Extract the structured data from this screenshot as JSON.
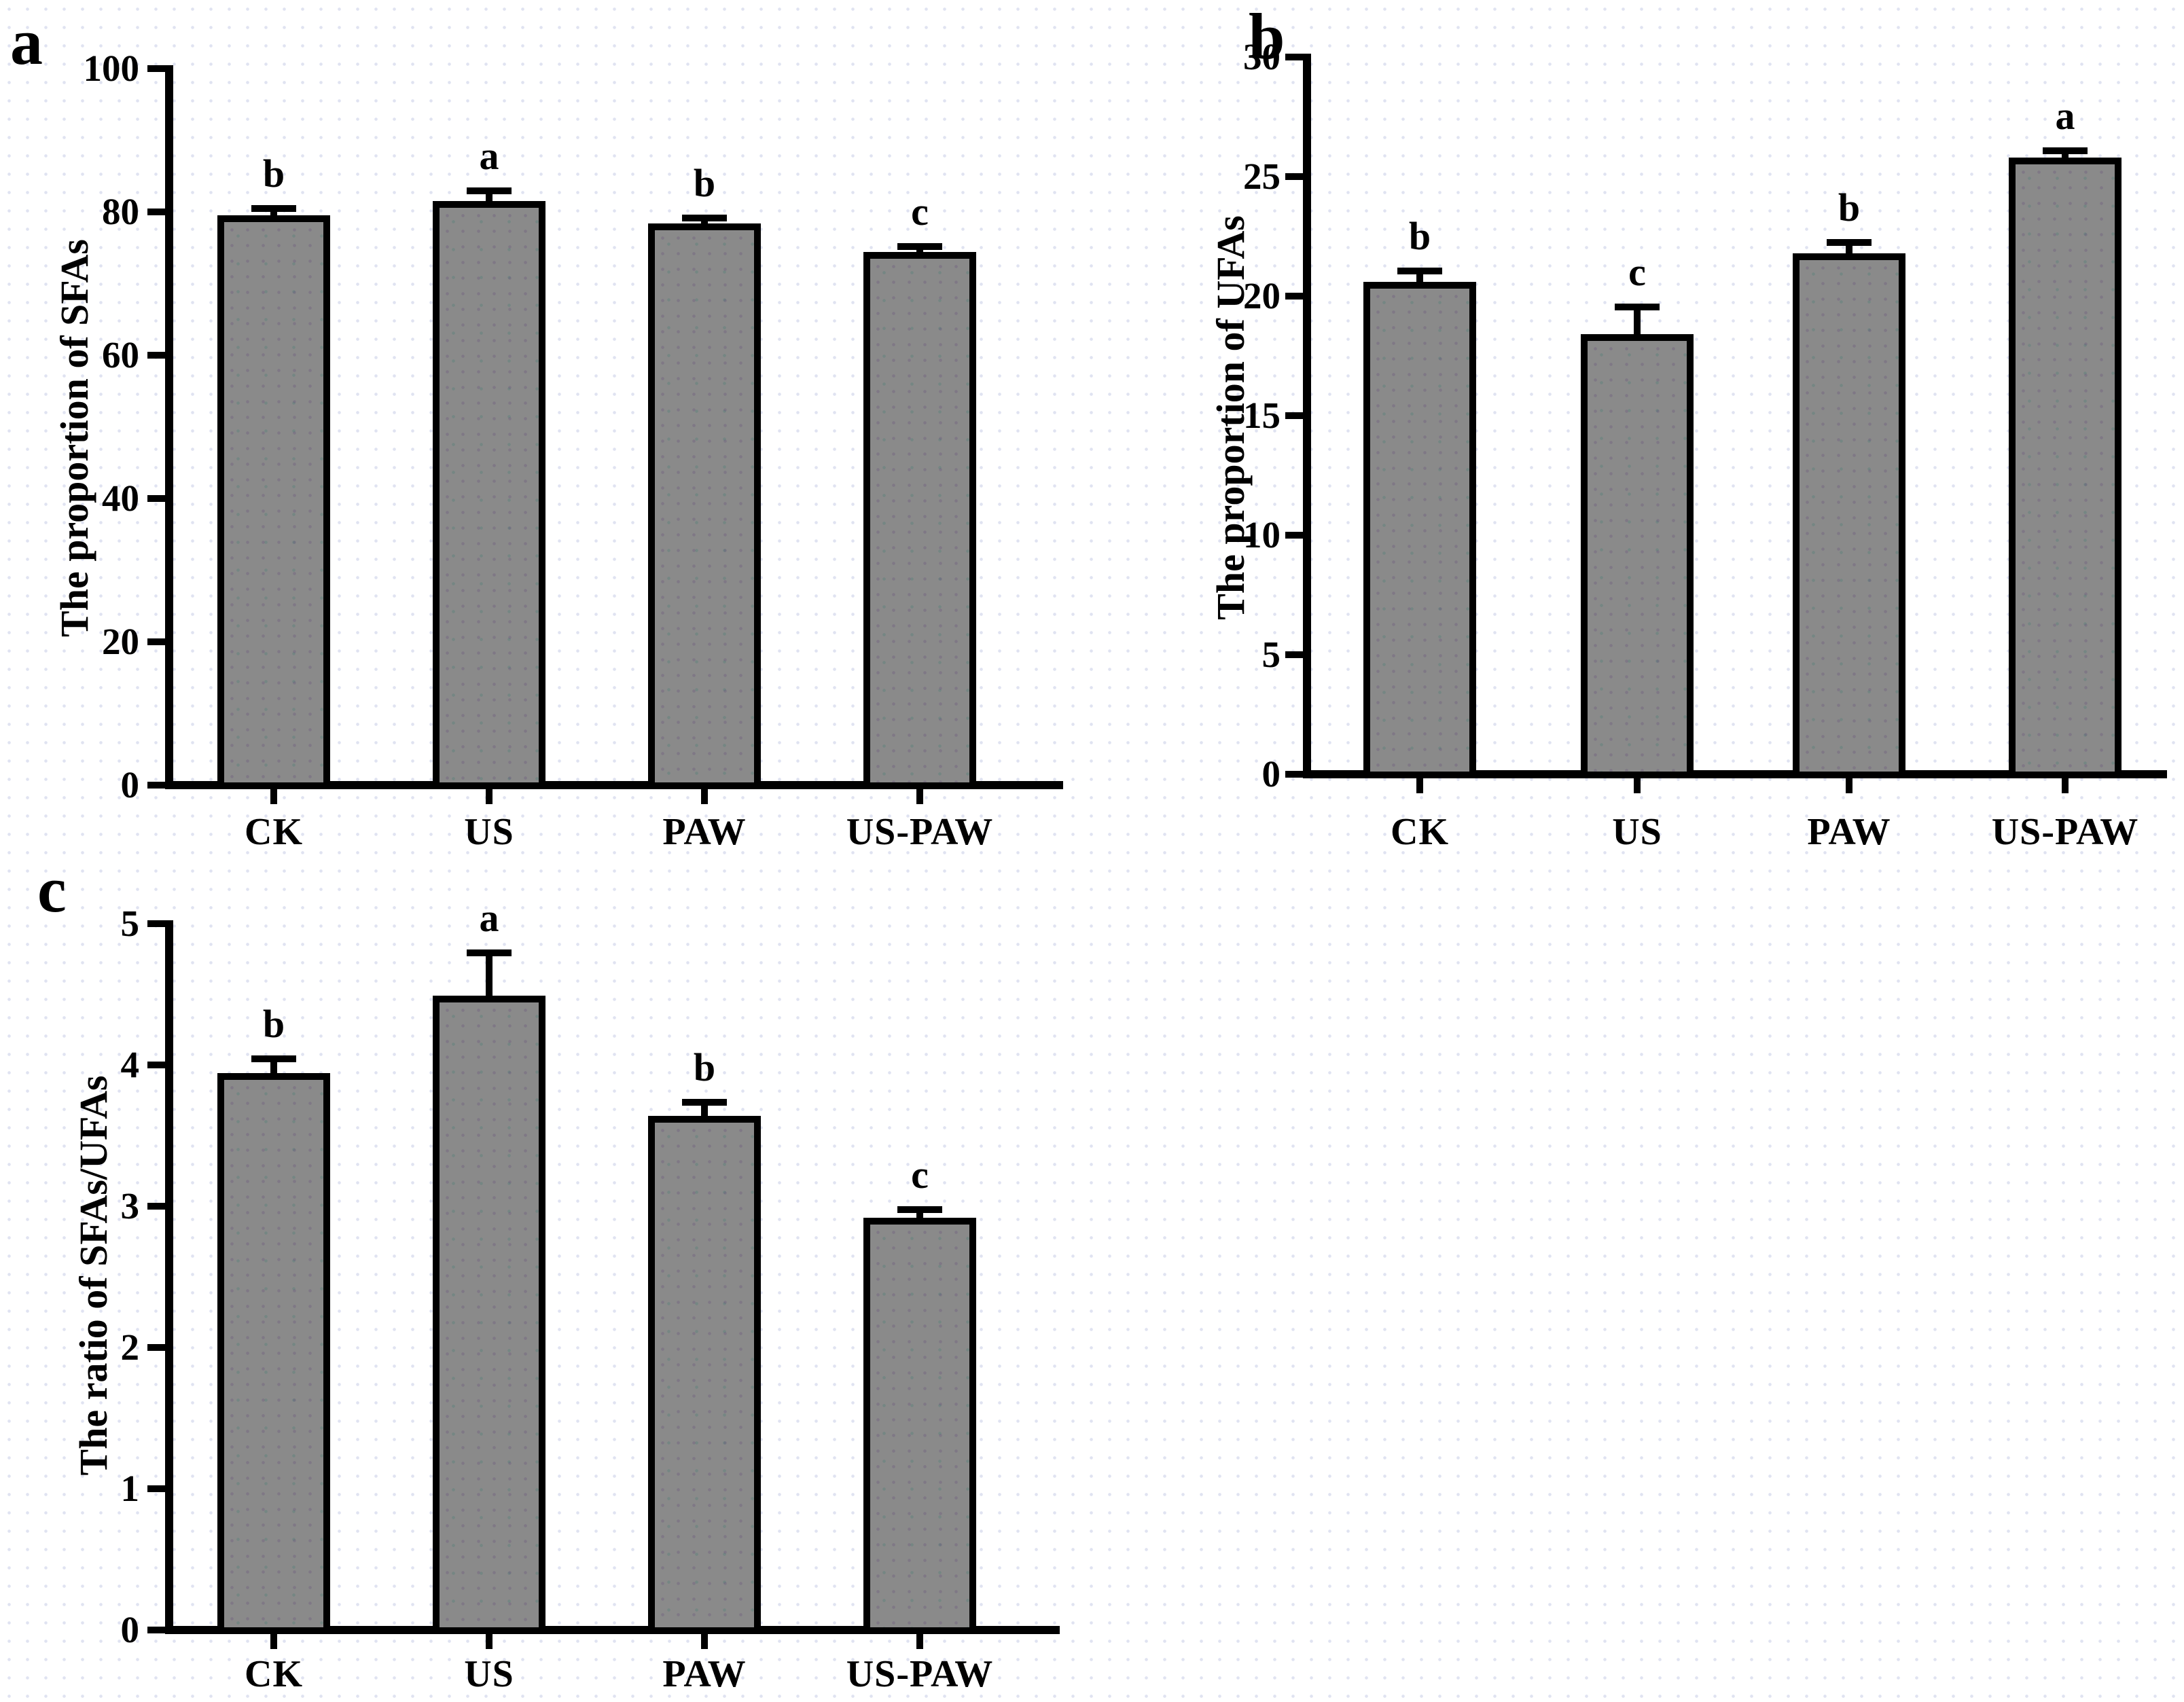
{
  "figure": {
    "background": "#ffffff",
    "axis_color": "#000000",
    "bar_fill": "#8a8a8a",
    "text_color": "#000000"
  },
  "chart_data": [
    {
      "type": "bar",
      "id": "a",
      "panel_label": "a",
      "title": "",
      "xlabel": "",
      "ylabel": "The proportion of SFAs",
      "categories": [
        "CK",
        "US",
        "PAW",
        "US-PAW"
      ],
      "values": [
        79.5,
        81.5,
        78.4,
        74.4
      ],
      "errors": [
        0.5,
        1.0,
        0.3,
        0.3
      ],
      "sig_letters": [
        "b",
        "a",
        "b",
        "c"
      ],
      "ylim": [
        0,
        100
      ],
      "yticks": [
        0,
        20,
        40,
        60,
        80,
        100
      ],
      "grid": "off",
      "legend": "none",
      "error_bars": "upper caps, black"
    },
    {
      "type": "bar",
      "id": "b",
      "panel_label": "b",
      "title": "",
      "xlabel": "",
      "ylabel": "The proportion of UFAs",
      "categories": [
        "CK",
        "US",
        "PAW",
        "US-PAW"
      ],
      "values": [
        20.6,
        18.4,
        21.8,
        25.8
      ],
      "errors": [
        0.3,
        1.0,
        0.3,
        0.15
      ],
      "sig_letters": [
        "b",
        "c",
        "b",
        "a"
      ],
      "ylim": [
        0,
        30
      ],
      "yticks": [
        0,
        5,
        10,
        15,
        20,
        25,
        30
      ],
      "grid": "off",
      "legend": "none",
      "error_bars": "upper caps, black"
    },
    {
      "type": "bar",
      "id": "c",
      "panel_label": "c",
      "title": "",
      "xlabel": "",
      "ylabel": "The ratio of SFAs/UFAs",
      "categories": [
        "CK",
        "US",
        "PAW",
        "US-PAW"
      ],
      "values": [
        3.94,
        4.49,
        3.64,
        2.92
      ],
      "errors": [
        0.08,
        0.28,
        0.07,
        0.03
      ],
      "sig_letters": [
        "b",
        "a",
        "b",
        "c"
      ],
      "ylim": [
        0,
        5
      ],
      "yticks": [
        0,
        1,
        2,
        3,
        4,
        5
      ],
      "grid": "off",
      "legend": "none",
      "error_bars": "upper caps, black"
    }
  ]
}
